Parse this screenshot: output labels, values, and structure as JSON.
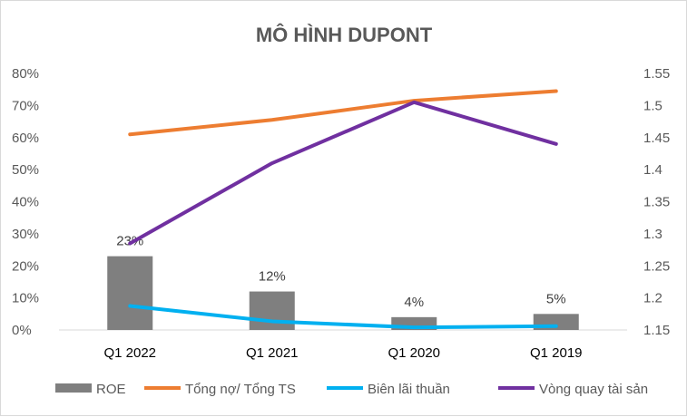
{
  "chart_data": {
    "type": "bar+line",
    "title": "MÔ HÌNH DUPONT",
    "categories": [
      "Q1 2022",
      "Q1 2021",
      "Q1 2020",
      "Q1 2019"
    ],
    "y_left": {
      "min": 0,
      "max": 0.8,
      "step": 0.1,
      "format": "percent",
      "ticks": [
        "0%",
        "10%",
        "20%",
        "30%",
        "40%",
        "50%",
        "60%",
        "70%",
        "80%"
      ]
    },
    "y_right": {
      "min": 1.15,
      "max": 1.55,
      "step": 0.05,
      "ticks": [
        "1.15",
        "1.2",
        "1.25",
        "1.3",
        "1.35",
        "1.4",
        "1.45",
        "1.5",
        "1.55"
      ]
    },
    "grid": false,
    "legend_position": "bottom",
    "series": [
      {
        "name": "ROE",
        "kind": "bar",
        "axis": "left",
        "color": "#7f7f7f",
        "values": [
          0.23,
          0.12,
          0.04,
          0.05
        ],
        "labels": [
          "23%",
          "12%",
          "4%",
          "5%"
        ]
      },
      {
        "name": "Tổng nợ/ Tổng TS",
        "kind": "line",
        "axis": "left",
        "color": "#ed7d31",
        "values": [
          0.61,
          0.655,
          0.715,
          0.745
        ]
      },
      {
        "name": "Biên lãi thuần",
        "kind": "line",
        "axis": "left",
        "color": "#00b0f0",
        "values": [
          0.075,
          0.027,
          0.008,
          0.012
        ]
      },
      {
        "name": "Vòng quay tài sản",
        "kind": "line",
        "axis": "right",
        "color": "#7030a0",
        "values": [
          1.285,
          1.41,
          1.505,
          1.44
        ]
      }
    ]
  }
}
